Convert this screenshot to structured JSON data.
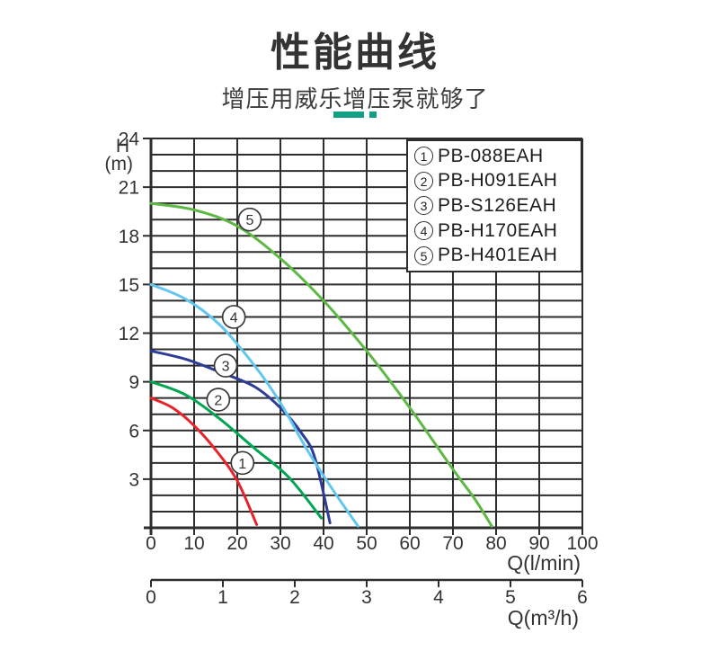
{
  "header": {
    "title": "性能曲线",
    "subtitle": "增压用威乐增压泵就够了"
  },
  "colors": {
    "accent_teal": "#13a186",
    "grid": "#2d2d2d",
    "axis": "#2d2d2d",
    "text": "#333333"
  },
  "legend": {
    "items": [
      {
        "index": "1",
        "label": "PB-088EAH"
      },
      {
        "index": "2",
        "label": "PB-H091EAH"
      },
      {
        "index": "3",
        "label": "PB-S126EAH"
      },
      {
        "index": "4",
        "label": "PB-H170EAH"
      },
      {
        "index": "5",
        "label": "PB-H401EAH"
      }
    ]
  },
  "chart_data": {
    "type": "line",
    "title": "性能曲线",
    "xlabel": "Q(l/min)",
    "xlabel2": "Q(m³/h)",
    "ylabel_line1": "H",
    "ylabel_line2": "(m)",
    "xlim": [
      0,
      100
    ],
    "ylim": [
      0,
      24
    ],
    "x2lim": [
      0,
      6
    ],
    "grid": true,
    "x_ticks": [
      0,
      10,
      20,
      30,
      40,
      50,
      60,
      70,
      80,
      90,
      100
    ],
    "y_grid_step": 1,
    "y_tick_labels": [
      3,
      6,
      9,
      12,
      15,
      18,
      21,
      24
    ],
    "x2_ticks": [
      0,
      1,
      2,
      3,
      4,
      5,
      6
    ],
    "legend_position": "top-right",
    "series": [
      {
        "id": "1",
        "name": "PB-088EAH",
        "color": "#e8232a",
        "points": [
          [
            0,
            8
          ],
          [
            5,
            7.4
          ],
          [
            10,
            6.3
          ],
          [
            15,
            4.8
          ],
          [
            20,
            2.9
          ],
          [
            24.5,
            0.2
          ]
        ],
        "label_at": [
          21.2,
          4.0
        ]
      },
      {
        "id": "2",
        "name": "PB-H091EAH",
        "color": "#00a651",
        "points": [
          [
            0,
            9
          ],
          [
            8,
            8.2
          ],
          [
            16,
            6.7
          ],
          [
            24,
            4.9
          ],
          [
            32,
            3.1
          ],
          [
            39.5,
            0.6
          ]
        ],
        "label_at": [
          15.6,
          7.9
        ]
      },
      {
        "id": "3",
        "name": "PB-S126EAH",
        "color": "#2c3c98",
        "points": [
          [
            0,
            10.9
          ],
          [
            8,
            10.4
          ],
          [
            16,
            9.6
          ],
          [
            24,
            8.7
          ],
          [
            30,
            7.4
          ],
          [
            35,
            5.8
          ],
          [
            38,
            4.3
          ],
          [
            41.5,
            0.3
          ]
        ],
        "label_at": [
          17.3,
          10.0
        ]
      },
      {
        "id": "4",
        "name": "PB-H170EAH",
        "color": "#62c7ee",
        "points": [
          [
            0,
            15
          ],
          [
            8,
            14.1
          ],
          [
            16,
            12.5
          ],
          [
            24,
            10.0
          ],
          [
            30,
            7.7
          ],
          [
            36,
            4.9
          ],
          [
            42,
            2.4
          ],
          [
            48,
            0.1
          ]
        ],
        "label_at": [
          19.2,
          13.0
        ]
      },
      {
        "id": "5",
        "name": "PB-H401EAH",
        "color": "#5db944",
        "points": [
          [
            0,
            20
          ],
          [
            10,
            19.6
          ],
          [
            20,
            18.6
          ],
          [
            30,
            16.6
          ],
          [
            40,
            14.0
          ],
          [
            50,
            10.9
          ],
          [
            60,
            7.4
          ],
          [
            70,
            3.6
          ],
          [
            75,
            1.8
          ],
          [
            79,
            0.1
          ]
        ],
        "label_at": [
          22.9,
          19.0
        ]
      }
    ]
  }
}
